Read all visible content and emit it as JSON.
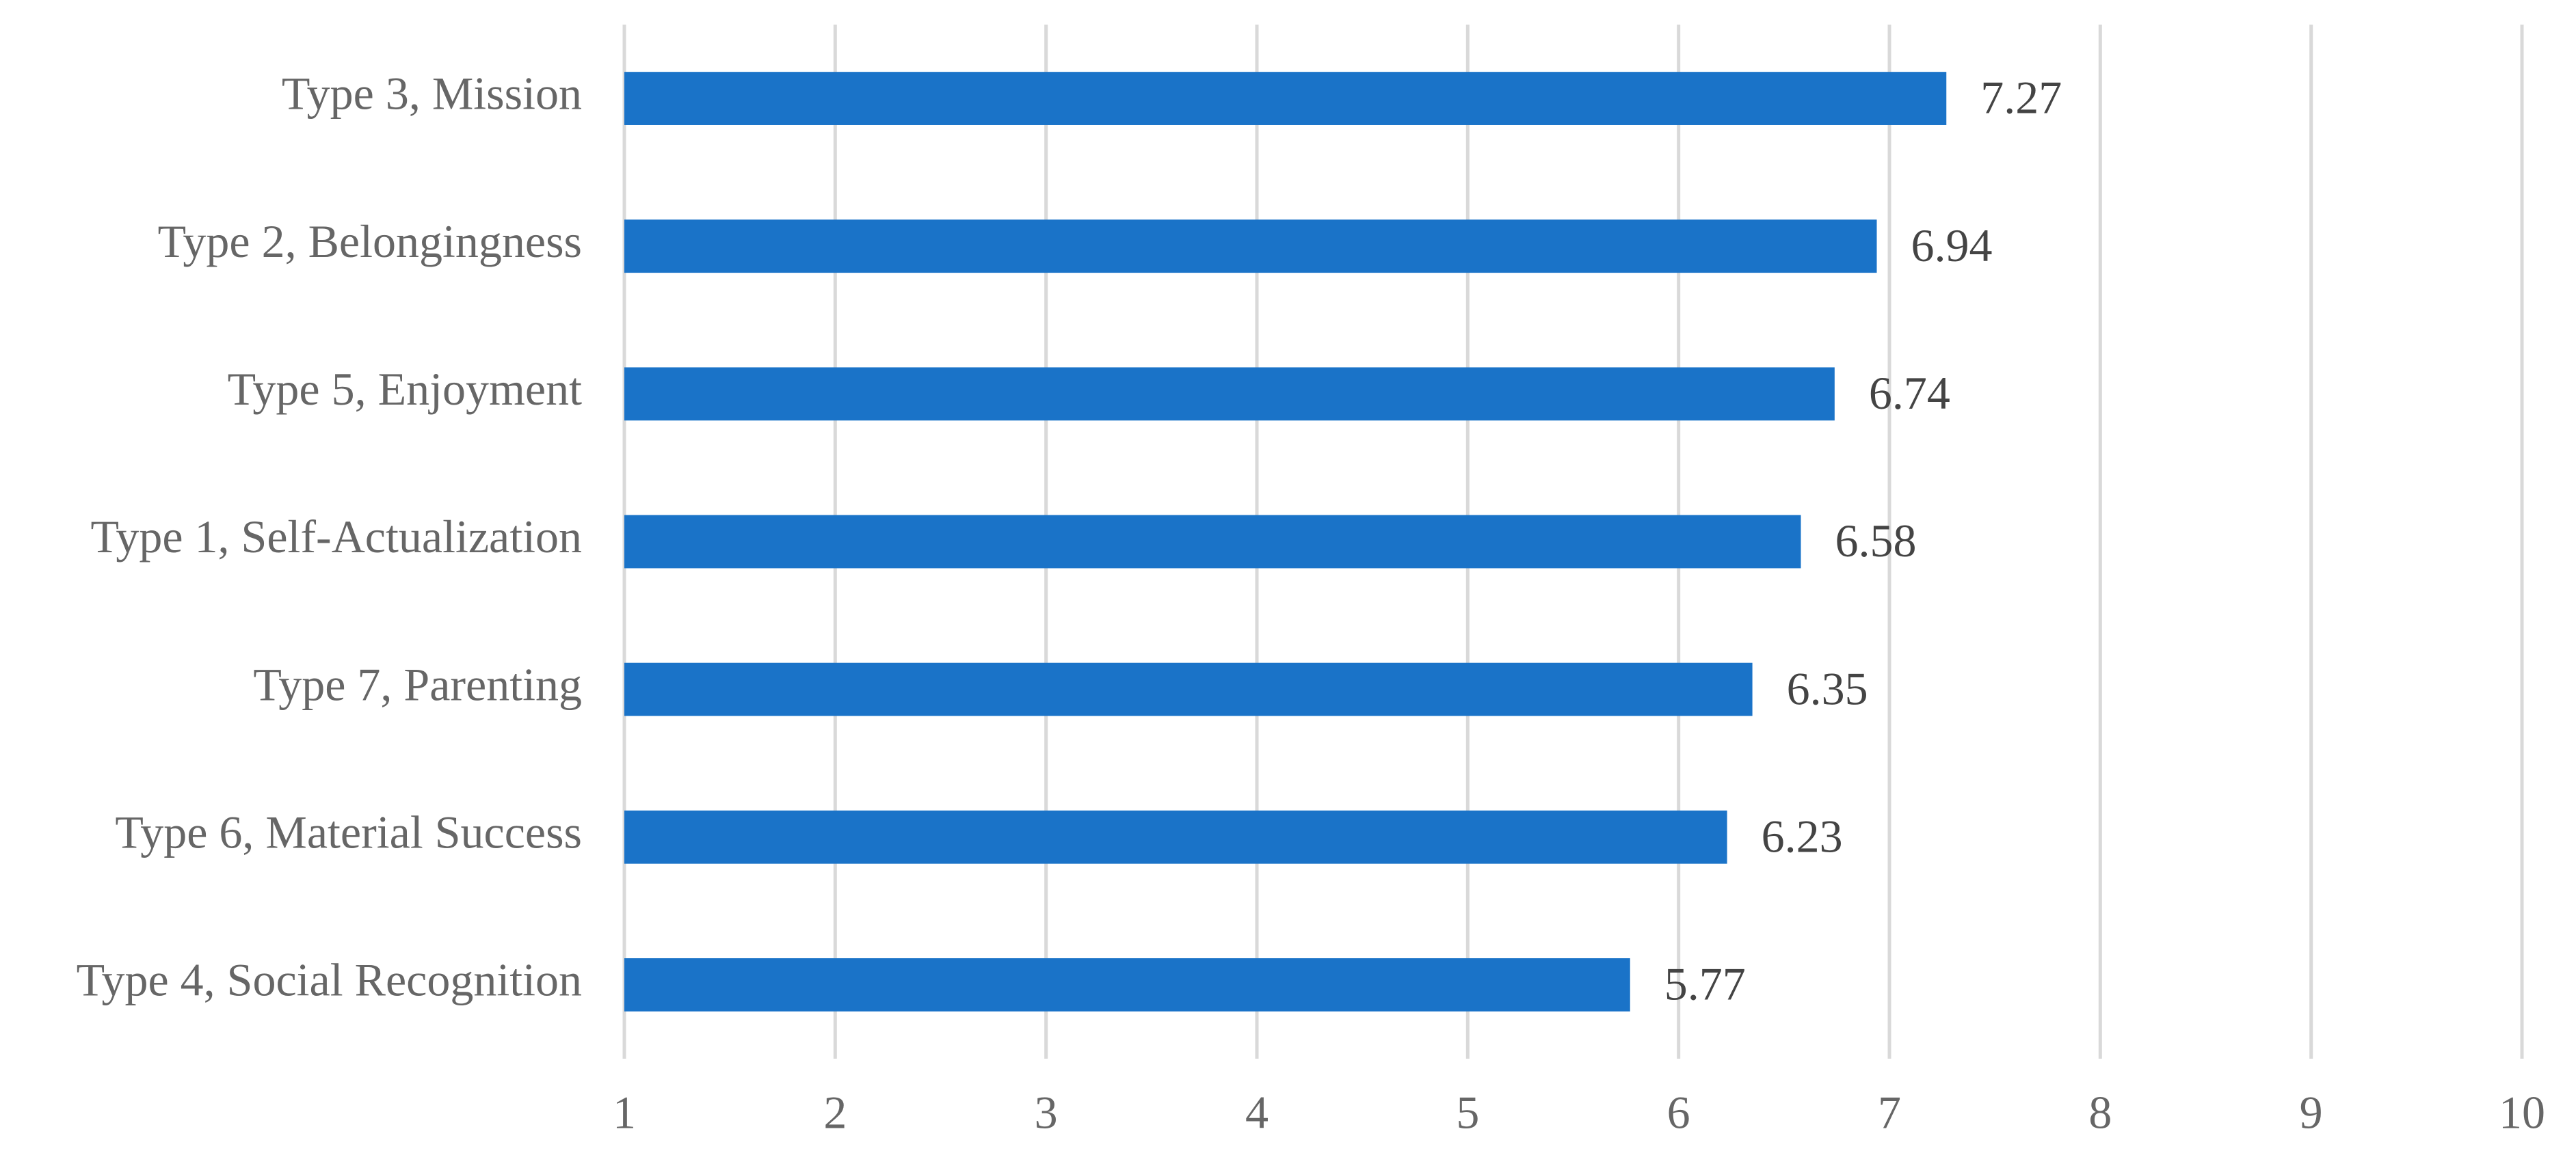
{
  "chart_data": {
    "type": "bar",
    "orientation": "horizontal",
    "categories": [
      "Type 3, Mission",
      "Type 2, Belongingness",
      "Type 5, Enjoyment",
      "Type 1, Self-Actualization",
      "Type 7, Parenting",
      "Type 6, Material Success",
      "Type 4, Social Recognition"
    ],
    "values": [
      7.27,
      6.94,
      6.74,
      6.58,
      6.35,
      6.23,
      5.77
    ],
    "color": "#1a73c8",
    "xlim": [
      1,
      10
    ],
    "xticks": [
      1,
      2,
      3,
      4,
      5,
      6,
      7,
      8,
      9,
      10
    ],
    "grid": true
  }
}
